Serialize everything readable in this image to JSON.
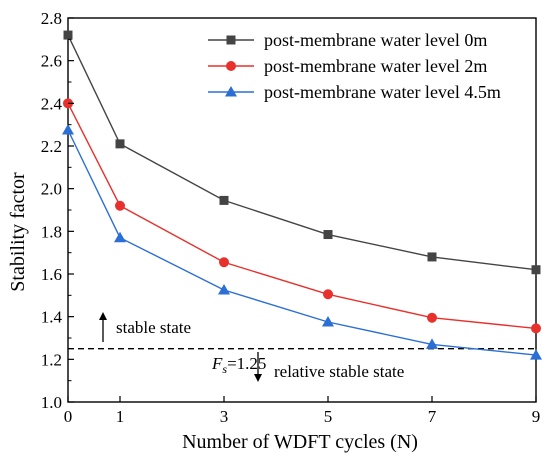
{
  "chart_data": {
    "type": "line",
    "xlabel": "Number of WDFT  cycles (N)",
    "ylabel": "Stability factor",
    "x": [
      0,
      1,
      3,
      5,
      7,
      9
    ],
    "xlim": [
      0,
      9
    ],
    "ylim": [
      1.0,
      2.8
    ],
    "xticks": [
      "0",
      "1",
      "3",
      "5",
      "7",
      "9"
    ],
    "yticks": [
      "1.0",
      "1.2",
      "1.4",
      "1.6",
      "1.8",
      "2.0",
      "2.2",
      "2.4",
      "2.6",
      "2.8"
    ],
    "grid": false,
    "legend_position": "top-right",
    "series": [
      {
        "name": "post-membrane water level 0m",
        "values": [
          2.72,
          2.21,
          1.945,
          1.785,
          1.68,
          1.62
        ],
        "color": "#444444",
        "marker": "square"
      },
      {
        "name": "post-membrane water level 2m",
        "values": [
          2.4,
          1.92,
          1.655,
          1.505,
          1.395,
          1.345
        ],
        "color": "#e8302c",
        "marker": "circle"
      },
      {
        "name": "post-membrane water level 4.5m",
        "values": [
          2.275,
          1.77,
          1.525,
          1.375,
          1.27,
          1.22
        ],
        "color": "#2b6fd6",
        "marker": "triangle"
      }
    ],
    "threshold": {
      "value": 1.25,
      "label_main": "F",
      "label_sub": "s",
      "label_rest": "=1.25"
    },
    "annotations": {
      "stable": "stable state",
      "relative_stable": "relative stable state"
    }
  }
}
